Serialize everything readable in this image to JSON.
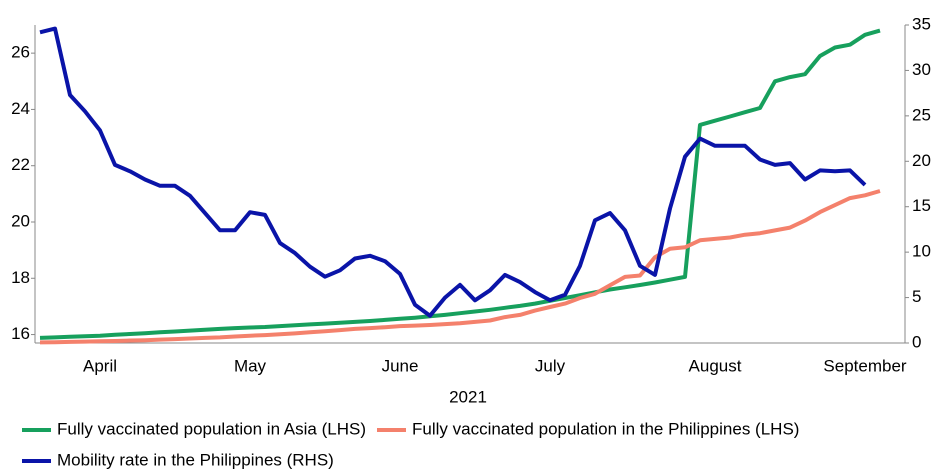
{
  "chart_data": {
    "type": "line",
    "x_label": "2021",
    "categories": [
      null,
      null,
      null,
      null,
      "April",
      null,
      null,
      null,
      null,
      null,
      null,
      null,
      null,
      null,
      "May",
      null,
      null,
      null,
      null,
      null,
      null,
      null,
      null,
      null,
      "June",
      null,
      null,
      null,
      null,
      null,
      null,
      null,
      null,
      null,
      "July",
      null,
      null,
      null,
      null,
      null,
      null,
      null,
      null,
      null,
      null,
      "August",
      null,
      null,
      null,
      null,
      null,
      null,
      null,
      null,
      null,
      "September",
      null
    ],
    "ylim": [
      15.7,
      27
    ],
    "yticks": [
      16,
      18,
      20,
      22,
      24,
      26
    ],
    "y2lim": [
      0,
      35
    ],
    "y2ticks": [
      0,
      5,
      10,
      15,
      20,
      25,
      30,
      35
    ],
    "series": [
      {
        "name": "Fully vaccinated population in Asia (LHS)",
        "color": "#17a05d",
        "values": [
          15.88,
          15.9,
          15.92,
          15.94,
          15.96,
          15.99,
          16.02,
          16.05,
          16.08,
          16.11,
          16.14,
          16.17,
          16.2,
          16.23,
          16.25,
          16.27,
          16.3,
          16.33,
          16.36,
          16.39,
          16.42,
          16.45,
          16.48,
          16.52,
          16.56,
          16.6,
          16.65,
          16.7,
          16.76,
          16.82,
          16.88,
          16.95,
          17.02,
          17.1,
          17.2,
          17.3,
          17.4,
          17.5,
          17.6,
          17.68,
          17.76,
          17.85,
          17.95,
          18.05,
          23.45,
          23.6,
          23.75,
          23.9,
          24.05,
          25.0,
          25.15,
          25.25,
          25.9,
          26.2,
          26.3,
          26.65,
          26.8
        ]
      },
      {
        "name": "Fully vaccinated population in the Philippines (LHS)",
        "color": "#f4816c",
        "values": [
          15.72,
          15.73,
          15.74,
          15.75,
          15.76,
          15.77,
          15.79,
          15.8,
          15.82,
          15.84,
          15.86,
          15.88,
          15.9,
          15.93,
          15.96,
          15.98,
          16.01,
          16.04,
          16.08,
          16.12,
          16.16,
          16.2,
          16.23,
          16.26,
          16.3,
          16.32,
          16.34,
          16.37,
          16.4,
          16.45,
          16.5,
          16.62,
          16.7,
          16.85,
          16.98,
          17.1,
          17.3,
          17.45,
          17.75,
          18.05,
          18.1,
          18.75,
          19.05,
          19.1,
          19.35,
          19.4,
          19.45,
          19.55,
          19.6,
          19.7,
          19.8,
          20.05,
          20.35,
          20.6,
          20.85,
          20.95,
          21.1
        ]
      },
      {
        "name": "Mobility rate in the Philippines (RHS)",
        "color": "#0a14a8",
        "axis": "y2",
        "values": [
          34.2,
          34.6,
          27.3,
          25.5,
          23.4,
          19.6,
          18.9,
          18.0,
          17.3,
          17.3,
          16.2,
          14.3,
          12.4,
          12.4,
          14.4,
          14.1,
          11.0,
          9.9,
          8.4,
          7.3,
          8.0,
          9.3,
          9.6,
          9.0,
          7.6,
          4.2,
          3.0,
          5.0,
          6.4,
          4.7,
          5.8,
          7.5,
          6.7,
          5.6,
          4.7,
          5.3,
          8.5,
          13.5,
          14.3,
          12.4,
          8.5,
          7.5,
          14.8,
          20.5,
          22.5,
          21.7,
          21.7,
          21.7,
          20.2,
          19.6,
          19.8,
          18.0,
          19.0,
          18.9,
          19.0,
          17.4,
          null
        ]
      }
    ]
  }
}
